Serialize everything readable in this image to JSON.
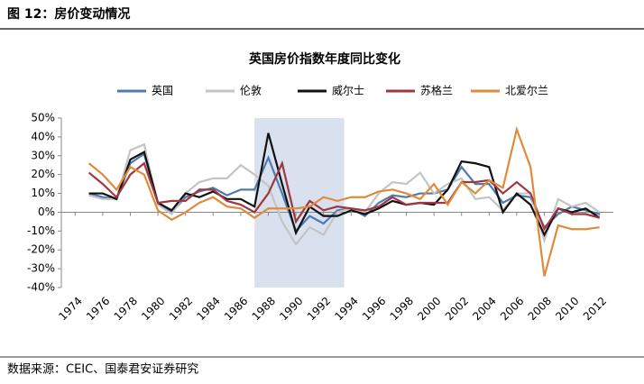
{
  "header": "图 12：房价变动情况",
  "source": "数据来源：CEIC、国泰君安证券研究",
  "chart_data": {
    "type": "line",
    "title": "英国房价指数年度同比变化",
    "x": [
      1975,
      1976,
      1977,
      1978,
      1979,
      1980,
      1981,
      1982,
      1983,
      1984,
      1985,
      1986,
      1987,
      1988,
      1989,
      1990,
      1991,
      1992,
      1993,
      1994,
      1995,
      1996,
      1997,
      1998,
      1999,
      2000,
      2001,
      2002,
      2003,
      2004,
      2005,
      2006,
      2007,
      2008,
      2009,
      2010,
      2011,
      2012
    ],
    "series": [
      {
        "name": "英国",
        "color": "#4f7bb0",
        "values": [
          10,
          8,
          7,
          26,
          31,
          5,
          0,
          8,
          11,
          13,
          9,
          12,
          12,
          29,
          10,
          -10,
          -2,
          -6,
          1,
          2,
          -2,
          5,
          9,
          8,
          10,
          10,
          12,
          24,
          15,
          15,
          5,
          9,
          8,
          -8,
          -1,
          3,
          1,
          -1
        ]
      },
      {
        "name": "伦敦",
        "color": "#c4c4c4",
        "values": [
          9,
          7,
          7,
          33,
          36,
          4,
          -1,
          10,
          16,
          18,
          18,
          25,
          20,
          14,
          -5,
          -17,
          -8,
          -12,
          0,
          2,
          0,
          10,
          16,
          15,
          21,
          10,
          15,
          18,
          7,
          8,
          1,
          10,
          10,
          -15,
          7,
          3,
          5,
          0
        ]
      },
      {
        "name": "威尔士",
        "color": "#111111",
        "values": [
          10,
          10,
          7,
          28,
          32,
          5,
          1,
          10,
          8,
          11,
          7,
          7,
          3,
          42,
          15,
          -11,
          3,
          -2,
          -2,
          1,
          -1,
          2,
          6,
          4,
          5,
          4,
          12,
          27,
          26,
          24,
          0,
          10,
          4,
          -12,
          2,
          0,
          2,
          -3
        ]
      },
      {
        "name": "苏格兰",
        "color": "#a0373f",
        "values": [
          21,
          15,
          8,
          20,
          26,
          5,
          6,
          6,
          12,
          12,
          6,
          4,
          0,
          10,
          26,
          -5,
          6,
          1,
          3,
          2,
          1,
          3,
          8,
          4,
          5,
          5,
          5,
          16,
          16,
          17,
          10,
          16,
          10,
          -9,
          2,
          -1,
          -1,
          -3
        ]
      },
      {
        "name": "北爱尔兰",
        "color": "#e08a3c",
        "values": [
          26,
          20,
          12,
          24,
          20,
          1,
          -4,
          0,
          5,
          8,
          3,
          2,
          -3,
          2,
          2,
          2,
          3,
          8,
          6,
          8,
          8,
          11,
          12,
          10,
          7,
          15,
          4,
          16,
          10,
          17,
          13,
          44,
          24,
          -34,
          -7,
          -9,
          -9,
          -8
        ]
      }
    ],
    "xlim": [
      1973,
      2013
    ],
    "xticks": [
      1974,
      1976,
      1978,
      1980,
      1982,
      1984,
      1986,
      1988,
      1990,
      1992,
      1994,
      1996,
      1998,
      2000,
      2002,
      2004,
      2006,
      2008,
      2010,
      2012
    ],
    "ylim": [
      -40,
      50
    ],
    "yticks": [
      {
        "value": -40,
        "label": "-40%"
      },
      {
        "value": -30,
        "label": "-30%"
      },
      {
        "value": -20,
        "label": "-20%"
      },
      {
        "value": -10,
        "label": "-10%"
      },
      {
        "value": 0,
        "label": "0%"
      },
      {
        "value": 10,
        "label": "10%"
      },
      {
        "value": 20,
        "label": "20%"
      },
      {
        "value": 30,
        "label": "30%"
      },
      {
        "value": 40,
        "label": "40%"
      },
      {
        "value": 50,
        "label": "50%"
      }
    ],
    "shade": [
      1987,
      1993.5
    ],
    "shade_color": "#d9e1ef",
    "legend": "top"
  }
}
